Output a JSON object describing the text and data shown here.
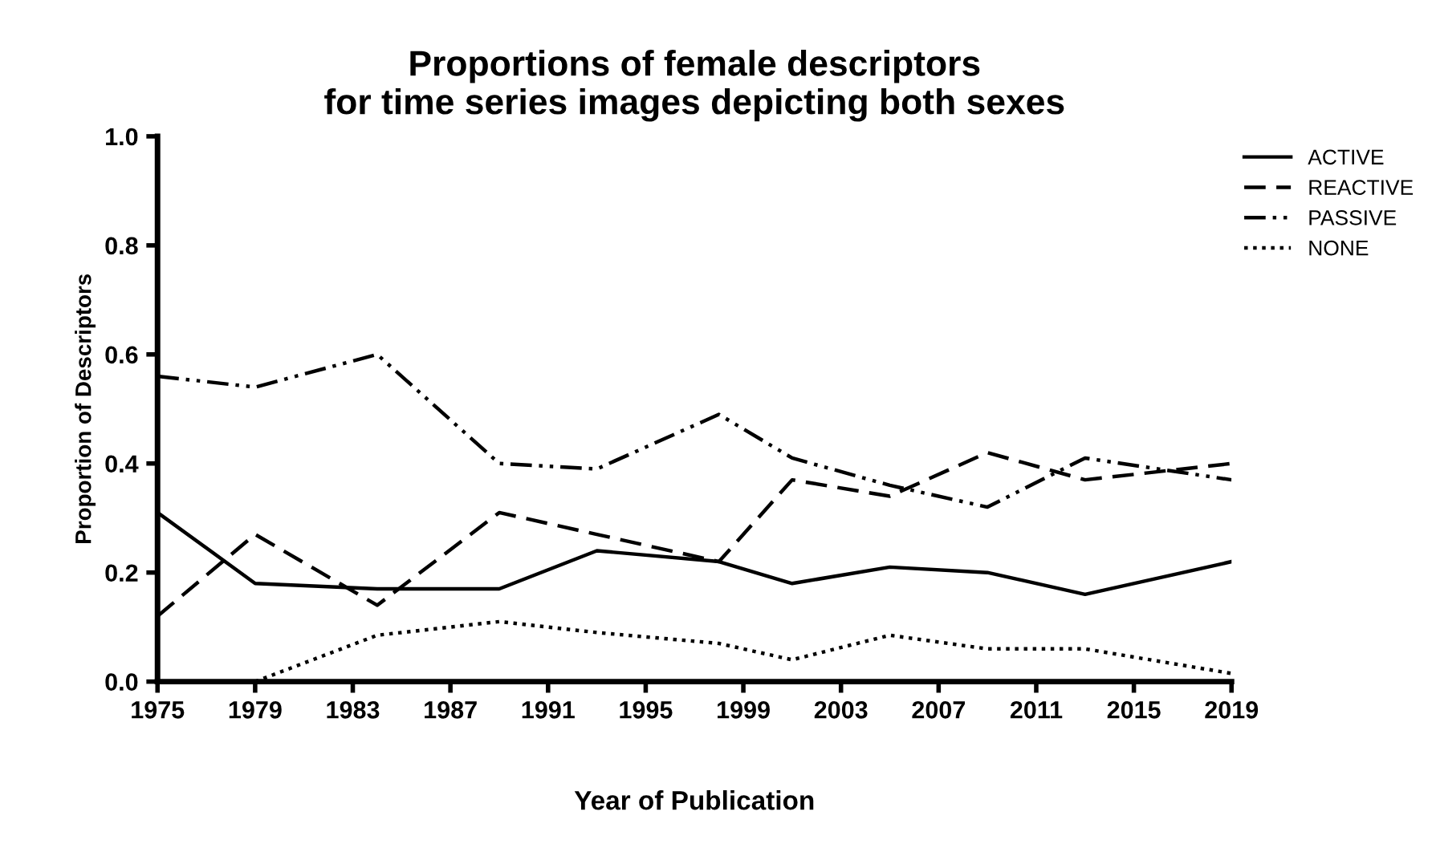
{
  "chart_data": {
    "type": "line",
    "title": "Proportions of female descriptors\nfor time series images depicting both sexes",
    "xlabel": "Year of Publication",
    "ylabel": "Proportion of Descriptors",
    "xlim": [
      1975,
      2019
    ],
    "xticks": [
      1975,
      1979,
      1983,
      1987,
      1991,
      1995,
      1999,
      2003,
      2007,
      2011,
      2015,
      2019
    ],
    "ylim": [
      0,
      1
    ],
    "yticks": [
      {
        "value": 0,
        "label": "0.0"
      },
      {
        "value": 0.2,
        "label": "0.2"
      },
      {
        "value": 0.4,
        "label": "0.4"
      },
      {
        "value": 0.6,
        "label": "0.6"
      },
      {
        "value": 0.8,
        "label": "0.8"
      },
      {
        "value": 1,
        "label": "1.0"
      }
    ],
    "grid": false,
    "legend": "top right",
    "marker": "none",
    "x": [
      1975,
      1979,
      1984,
      1989,
      1993,
      1998,
      2001,
      2005,
      2009,
      2013,
      2019
    ],
    "series": [
      {
        "name": "ACTIVE",
        "color": "#000000",
        "line_style": "solid",
        "values": [
          0.31,
          0.18,
          0.17,
          0.17,
          0.24,
          0.22,
          0.18,
          0.21,
          0.2,
          0.16,
          0.22
        ]
      },
      {
        "name": "REACTIVE",
        "color": "#000000",
        "line_style": "dashed",
        "values": [
          0.12,
          0.27,
          0.14,
          0.31,
          0.27,
          0.22,
          0.37,
          0.34,
          0.42,
          0.37,
          0.4
        ]
      },
      {
        "name": "PASSIVE",
        "color": "#000000",
        "line_style": "dashdotdot",
        "values": [
          0.56,
          0.54,
          0.6,
          0.4,
          0.39,
          0.49,
          0.41,
          0.36,
          0.32,
          0.41,
          0.37
        ]
      },
      {
        "name": "NONE",
        "color": "#000000",
        "line_style": "dotted",
        "values": [
          null,
          0.0,
          0.085,
          0.11,
          0.09,
          0.07,
          0.04,
          0.085,
          0.06,
          0.06,
          0.015
        ]
      }
    ]
  }
}
